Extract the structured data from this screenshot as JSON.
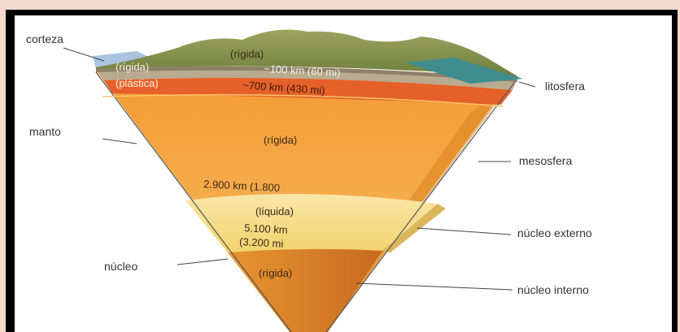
{
  "labels": {
    "corteza": "corteza",
    "manto": "manto",
    "nucleo": "núcleo",
    "litosfera": "litosfera",
    "mesosfera": "mesosfera",
    "nucleo_externo": "núcleo externo",
    "nucleo_interno": "núcleo interno"
  },
  "inner": {
    "crust_rigida": "(rígida)",
    "litho_rigida": "(rígida)",
    "litho_depth": "~100 km (60 mi)",
    "plastica": "(plástica)",
    "plastic_depth": "~700 km (430 mi)",
    "mantle_rigida": "(rígida)",
    "mantle_depth": "2.900 km (1.800",
    "liquida": "(líquida)",
    "outer_depth_1": "5.100 km",
    "outer_depth_2": "(3.200 mi",
    "inner_rigida": "(rígida)"
  },
  "colors": {
    "page_bg": "#f3d9cf",
    "border": "#000000",
    "mountains": "#7f8f4a",
    "plastic_layer": "#e6602a",
    "mantle": "#f5a033",
    "outer_core": "#f7e08e",
    "inner_core": "#e8922e"
  }
}
